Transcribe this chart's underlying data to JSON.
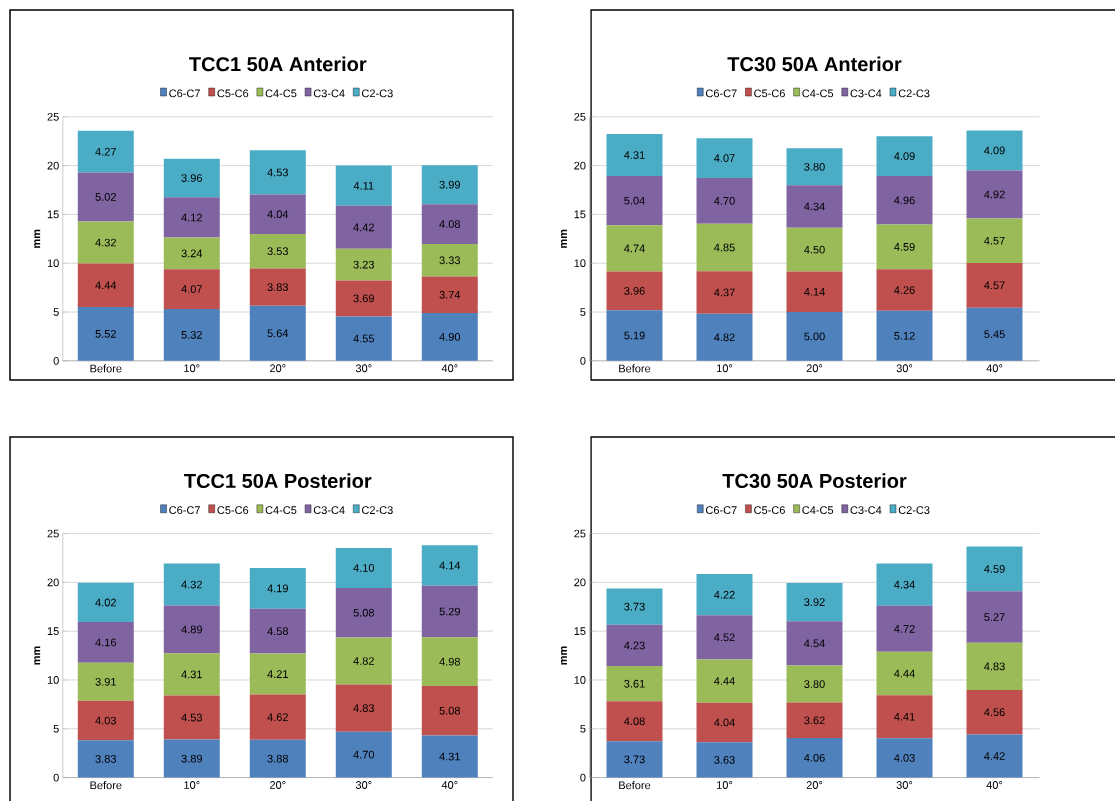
{
  "chart_data": [
    {
      "type": "bar",
      "stacked": true,
      "title": "TCC1 50A Anterior",
      "ylabel": "mm",
      "categories": [
        "Before",
        "10°",
        "20°",
        "30°",
        "40°"
      ],
      "ylim": [
        0,
        25
      ],
      "yticks": [
        0,
        5,
        10,
        15,
        20,
        25
      ],
      "grid": "y",
      "legend": "top",
      "series": [
        {
          "name": "C6-C7",
          "color": "#4f81bd",
          "values": [
            5.52,
            5.32,
            5.64,
            4.55,
            4.9
          ],
          "value_labels": [
            "5.52",
            "5.32",
            "5.64",
            "4.55",
            "4.90"
          ]
        },
        {
          "name": "C5-C6",
          "color": "#c0504d",
          "values": [
            4.44,
            4.07,
            3.83,
            3.69,
            3.74
          ],
          "value_labels": [
            "4.44",
            "4.07",
            "3.83",
            "3.69",
            "3.74"
          ]
        },
        {
          "name": "C4-C5",
          "color": "#9bbb59",
          "values": [
            4.32,
            3.24,
            3.53,
            3.23,
            3.33
          ],
          "value_labels": [
            "4.32",
            "3.24",
            "3.53",
            "3.23",
            "3.33"
          ]
        },
        {
          "name": "C3-C4",
          "color": "#8064a2",
          "values": [
            5.02,
            4.12,
            4.04,
            4.42,
            4.08
          ],
          "value_labels": [
            "5.02",
            "4.12",
            "4.04",
            "4.42",
            "4.08"
          ]
        },
        {
          "name": "C2-C3",
          "color": "#4bacc6",
          "values": [
            4.27,
            3.96,
            4.53,
            4.11,
            3.99
          ],
          "value_labels": [
            "4.27",
            "3.96",
            "4.53",
            "4.11",
            "3.99"
          ]
        }
      ]
    },
    {
      "type": "bar",
      "stacked": true,
      "title": "TC30 50A Anterior",
      "ylabel": "mm",
      "categories": [
        "Before",
        "10°",
        "20°",
        "30°",
        "40°"
      ],
      "ylim": [
        0,
        25
      ],
      "yticks": [
        0,
        5,
        10,
        15,
        20,
        25
      ],
      "grid": "y",
      "legend": "top",
      "series": [
        {
          "name": "C6-C7",
          "color": "#4f81bd",
          "values": [
            5.19,
            4.82,
            5.0,
            5.12,
            5.45
          ],
          "value_labels": [
            "5.19",
            "4.82",
            "5.00",
            "5.12",
            "5.45"
          ]
        },
        {
          "name": "C5-C6",
          "color": "#c0504d",
          "values": [
            3.96,
            4.37,
            4.14,
            4.26,
            4.57
          ],
          "value_labels": [
            "3.96",
            "4.37",
            "4.14",
            "4.26",
            "4.57"
          ]
        },
        {
          "name": "C4-C5",
          "color": "#9bbb59",
          "values": [
            4.74,
            4.85,
            4.5,
            4.59,
            4.57
          ],
          "value_labels": [
            "4.74",
            "4.85",
            "4.50",
            "4.59",
            "4.57"
          ]
        },
        {
          "name": "C3-C4",
          "color": "#8064a2",
          "values": [
            5.04,
            4.7,
            4.34,
            4.96,
            4.92
          ],
          "value_labels": [
            "5.04",
            "4.70",
            "4.34",
            "4.96",
            "4.92"
          ]
        },
        {
          "name": "C2-C3",
          "color": "#4bacc6",
          "values": [
            4.31,
            4.07,
            3.8,
            4.09,
            4.09
          ],
          "value_labels": [
            "4.31",
            "4.07",
            "3.80",
            "4.09",
            "4.09"
          ]
        }
      ]
    },
    {
      "type": "bar",
      "stacked": true,
      "title": "TCC1 50A Posterior",
      "ylabel": "mm",
      "categories": [
        "Before",
        "10°",
        "20°",
        "30°",
        "40°"
      ],
      "ylim": [
        0,
        25
      ],
      "yticks": [
        0,
        5,
        10,
        15,
        20,
        25
      ],
      "grid": "y",
      "legend": "top",
      "series": [
        {
          "name": "C6-C7",
          "color": "#4f81bd",
          "values": [
            3.83,
            3.89,
            3.88,
            4.7,
            4.31
          ],
          "value_labels": [
            "3.83",
            "3.89",
            "3.88",
            "4.70",
            "4.31"
          ]
        },
        {
          "name": "C5-C6",
          "color": "#c0504d",
          "values": [
            4.03,
            4.53,
            4.62,
            4.83,
            5.08
          ],
          "value_labels": [
            "4.03",
            "4.53",
            "4.62",
            "4.83",
            "5.08"
          ]
        },
        {
          "name": "C4-C5",
          "color": "#9bbb59",
          "values": [
            3.91,
            4.31,
            4.21,
            4.82,
            4.98
          ],
          "value_labels": [
            "3.91",
            "4.31",
            "4.21",
            "4.82",
            "4.98"
          ]
        },
        {
          "name": "C3-C4",
          "color": "#8064a2",
          "values": [
            4.16,
            4.89,
            4.58,
            5.08,
            5.29
          ],
          "value_labels": [
            "4.16",
            "4.89",
            "4.58",
            "5.08",
            "5.29"
          ]
        },
        {
          "name": "C2-C3",
          "color": "#4bacc6",
          "values": [
            4.02,
            4.32,
            4.19,
            4.1,
            4.14
          ],
          "value_labels": [
            "4.02",
            "4.32",
            "4.19",
            "4.10",
            "4.14"
          ]
        }
      ]
    },
    {
      "type": "bar",
      "stacked": true,
      "title": "TC30 50A Posterior",
      "ylabel": "mm",
      "categories": [
        "Before",
        "10°",
        "20°",
        "30°",
        "40°"
      ],
      "ylim": [
        0,
        25
      ],
      "yticks": [
        0,
        5,
        10,
        15,
        20,
        25
      ],
      "grid": "y",
      "legend": "top",
      "series": [
        {
          "name": "C6-C7",
          "color": "#4f81bd",
          "values": [
            3.73,
            3.63,
            4.06,
            4.03,
            4.42
          ],
          "value_labels": [
            "3.73",
            "3.63",
            "4.06",
            "4.03",
            "4.42"
          ]
        },
        {
          "name": "C5-C6",
          "color": "#c0504d",
          "values": [
            4.08,
            4.04,
            3.62,
            4.41,
            4.56
          ],
          "value_labels": [
            "4.08",
            "4.04",
            "3.62",
            "4.41",
            "4.56"
          ]
        },
        {
          "name": "C4-C5",
          "color": "#9bbb59",
          "values": [
            3.61,
            4.44,
            3.8,
            4.44,
            4.83
          ],
          "value_labels": [
            "3.61",
            "4.44",
            "3.80",
            "4.44",
            "4.83"
          ]
        },
        {
          "name": "C3-C4",
          "color": "#8064a2",
          "values": [
            4.23,
            4.52,
            4.54,
            4.72,
            5.27
          ],
          "value_labels": [
            "4.23",
            "4.52",
            "4.54",
            "4.72",
            "5.27"
          ]
        },
        {
          "name": "C2-C3",
          "color": "#4bacc6",
          "values": [
            3.73,
            4.22,
            3.92,
            4.34,
            4.59
          ],
          "value_labels": [
            "3.73",
            "4.22",
            "3.92",
            "4.34",
            "4.59"
          ]
        }
      ]
    }
  ]
}
